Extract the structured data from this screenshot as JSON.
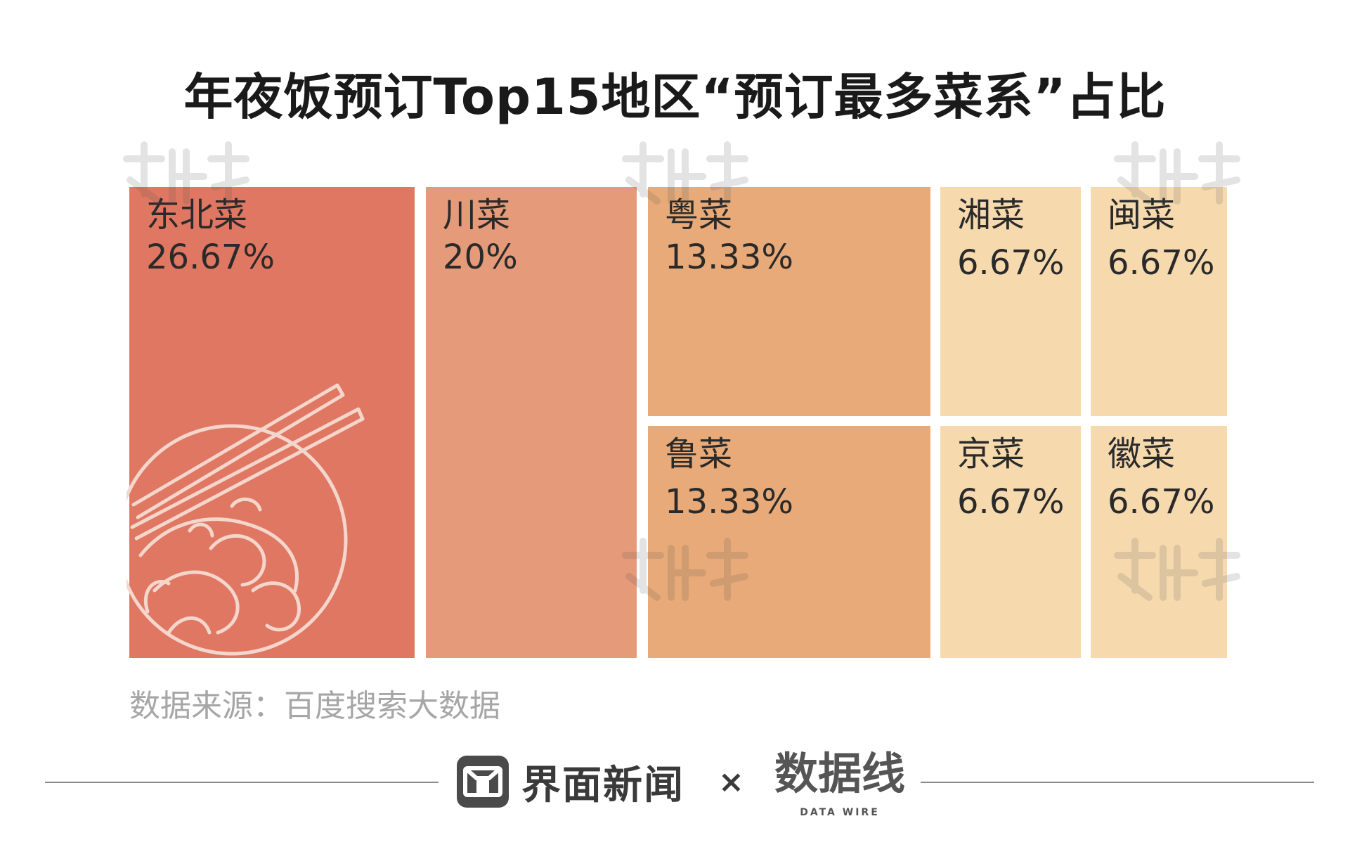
{
  "header": {
    "title": "年夜饭预订Top15地区“预订最多菜系”占比"
  },
  "footer": {
    "source": "数据来源：百度搜索大数据",
    "brand_name": "界面新闻",
    "times_sign": "×",
    "partner_logo": "数据线",
    "partner_sub": "DATA WIRE"
  },
  "colors": {
    "high": "#e07762",
    "mid": "#e59a79",
    "orange": "#e8aa78",
    "light": "#f6daae"
  },
  "chart_data": {
    "type": "treemap",
    "title": "年夜饭预订Top15地区“预订最多菜系”占比",
    "unit": "%",
    "items": [
      {
        "name": "东北菜",
        "value": 26.67,
        "label": "26.67%"
      },
      {
        "name": "川菜",
        "value": 20,
        "label": "20%"
      },
      {
        "name": "粤菜",
        "value": 13.33,
        "label": "13.33%"
      },
      {
        "name": "鲁菜",
        "value": 13.33,
        "label": "13.33%"
      },
      {
        "name": "湘菜",
        "value": 6.67,
        "label": "6.67%"
      },
      {
        "name": "闽菜",
        "value": 6.67,
        "label": "6.67%"
      },
      {
        "name": "京菜",
        "value": 6.67,
        "label": "6.67%"
      },
      {
        "name": "徽菜",
        "value": 6.67,
        "label": "6.67%"
      }
    ]
  }
}
